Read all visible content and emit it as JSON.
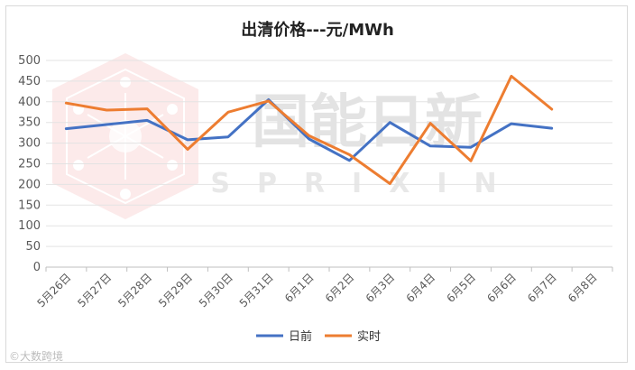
{
  "chart_data": {
    "type": "line",
    "title": "出清价格---元/MWh",
    "categories": [
      "5月26日",
      "5月27日",
      "5月28日",
      "5月29日",
      "5月30日",
      "5月31日",
      "6月1日",
      "6月2日",
      "6月3日",
      "6月4日",
      "6月5日",
      "6月6日",
      "6月7日",
      "6月8日"
    ],
    "series": [
      {
        "name": "日前",
        "color": "#4472C4",
        "values": [
          335,
          345,
          355,
          308,
          315,
          405,
          310,
          258,
          350,
          293,
          290,
          347,
          336,
          null
        ]
      },
      {
        "name": "实时",
        "color": "#ED7D31",
        "values": [
          397,
          380,
          383,
          285,
          375,
          402,
          318,
          272,
          202,
          348,
          257,
          462,
          382,
          null
        ]
      }
    ],
    "ylim": [
      0,
      500
    ],
    "yticks": [
      0,
      50,
      100,
      150,
      200,
      250,
      300,
      350,
      400,
      450,
      500
    ],
    "grid": true,
    "legend_position": "bottom"
  },
  "watermark": {
    "brand_cn": "国能日新",
    "brand_en": "SPRIXIN",
    "logo": "hexagon-network-logo",
    "logo_color": "#e9a0a0"
  },
  "source_mark": "©大数跨境"
}
